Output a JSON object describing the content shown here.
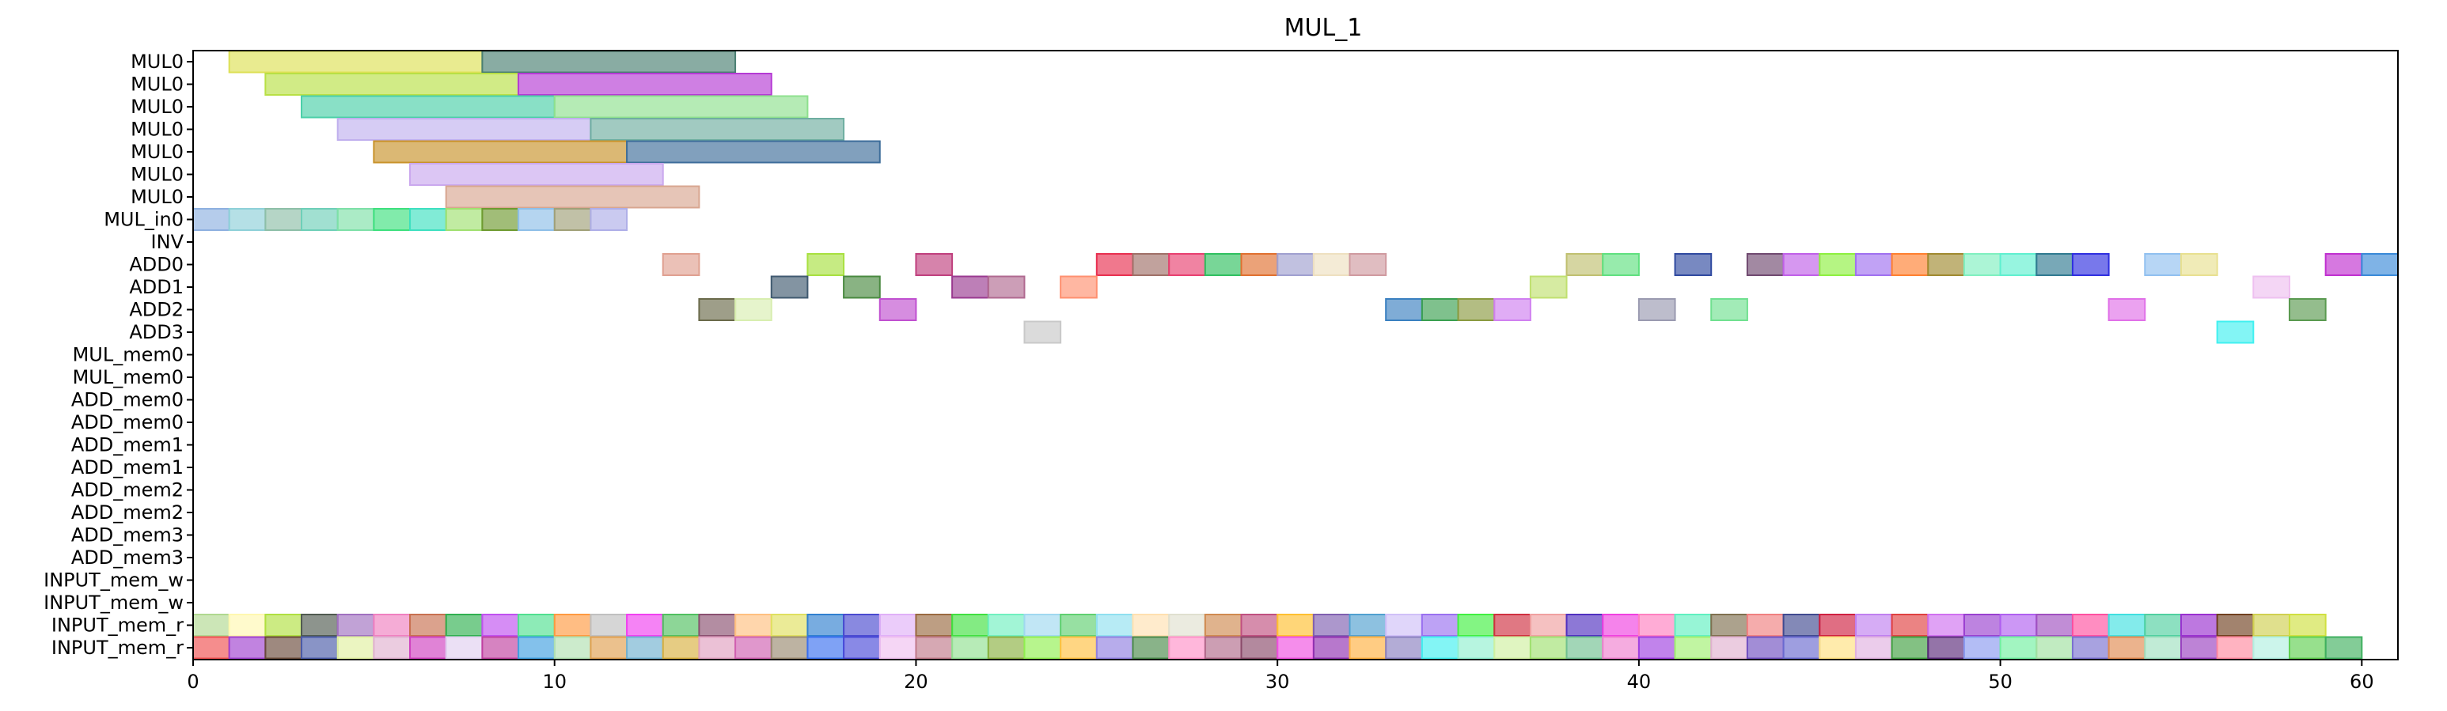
{
  "chart_data": {
    "type": "gantt",
    "title": "MUL_1",
    "xlabel": "",
    "ylabel": "",
    "xlim": [
      0,
      61
    ],
    "xticks": [
      0,
      10,
      20,
      30,
      40,
      50,
      60
    ],
    "xtick_labels": [
      "0",
      "10",
      "20",
      "30",
      "40",
      "50",
      "60"
    ],
    "rows": [
      "MUL0",
      "MUL0",
      "MUL0",
      "MUL0",
      "MUL0",
      "MUL0",
      "MUL0",
      "MUL_in0",
      "INV",
      "ADD0",
      "ADD1",
      "ADD2",
      "ADD3",
      "MUL_mem0",
      "MUL_mem0",
      "ADD_mem0",
      "ADD_mem0",
      "ADD_mem1",
      "ADD_mem1",
      "ADD_mem2",
      "ADD_mem2",
      "ADD_mem3",
      "ADD_mem3",
      "INPUT_mem_w",
      "INPUT_mem_w",
      "INPUT_mem_r",
      "INPUT_mem_r"
    ],
    "tasks": [
      {
        "row": 0,
        "start": 1,
        "end": 8,
        "color": "#dde055"
      },
      {
        "row": 0,
        "start": 8,
        "end": 15,
        "color": "#4a7f72"
      },
      {
        "row": 1,
        "start": 2,
        "end": 9,
        "color": "#b8e045"
      },
      {
        "row": 1,
        "start": 9,
        "end": 16,
        "color": "#b53ad4"
      },
      {
        "row": 2,
        "start": 3,
        "end": 10,
        "color": "#4acfa8"
      },
      {
        "row": 2,
        "start": 10,
        "end": 17,
        "color": "#8ee08e"
      },
      {
        "row": 3,
        "start": 4,
        "end": 11,
        "color": "#c0b0ee"
      },
      {
        "row": 3,
        "start": 11,
        "end": 18,
        "color": "#6eaea0"
      },
      {
        "row": 4,
        "start": 5,
        "end": 12,
        "color": "#c8922a"
      },
      {
        "row": 4,
        "start": 12,
        "end": 19,
        "color": "#3d6d9a"
      },
      {
        "row": 5,
        "start": 6,
        "end": 13,
        "color": "#caa8ee"
      },
      {
        "row": 6,
        "start": 7,
        "end": 14,
        "color": "#d8a690"
      },
      {
        "row": 7,
        "start": 0,
        "end": 1,
        "color": "#8eb0e0"
      },
      {
        "row": 7,
        "start": 1,
        "end": 2,
        "color": "#8ed0d8"
      },
      {
        "row": 7,
        "start": 2,
        "end": 3,
        "color": "#8ebfa8"
      },
      {
        "row": 7,
        "start": 3,
        "end": 4,
        "color": "#6ecfb8"
      },
      {
        "row": 7,
        "start": 4,
        "end": 5,
        "color": "#7ee0a8"
      },
      {
        "row": 7,
        "start": 5,
        "end": 6,
        "color": "#3ee07e"
      },
      {
        "row": 7,
        "start": 6,
        "end": 7,
        "color": "#3ee0c0"
      },
      {
        "row": 7,
        "start": 7,
        "end": 8,
        "color": "#a0e070"
      },
      {
        "row": 7,
        "start": 8,
        "end": 9,
        "color": "#6e9a30"
      },
      {
        "row": 7,
        "start": 9,
        "end": 10,
        "color": "#8ebfe8"
      },
      {
        "row": 7,
        "start": 10,
        "end": 11,
        "color": "#a0a078"
      },
      {
        "row": 7,
        "start": 11,
        "end": 12,
        "color": "#aeaee8"
      },
      {
        "row": 9,
        "start": 13,
        "end": 14,
        "color": "#e0a090"
      },
      {
        "row": 9,
        "start": 17,
        "end": 18,
        "color": "#a8e040"
      },
      {
        "row": 9,
        "start": 20,
        "end": 21,
        "color": "#c0407e"
      },
      {
        "row": 9,
        "start": 25,
        "end": 26,
        "color": "#e83050"
      },
      {
        "row": 9,
        "start": 26,
        "end": 27,
        "color": "#a07068"
      },
      {
        "row": 9,
        "start": 27,
        "end": 28,
        "color": "#e84070"
      },
      {
        "row": 9,
        "start": 28,
        "end": 29,
        "color": "#30c060"
      },
      {
        "row": 9,
        "start": 29,
        "end": 30,
        "color": "#e07030"
      },
      {
        "row": 9,
        "start": 30,
        "end": 31,
        "color": "#a0a0d0"
      },
      {
        "row": 9,
        "start": 31,
        "end": 32,
        "color": "#eee0c0"
      },
      {
        "row": 9,
        "start": 32,
        "end": 33,
        "color": "#d09aa0"
      },
      {
        "row": 9,
        "start": 38,
        "end": 39,
        "color": "#c0c070"
      },
      {
        "row": 9,
        "start": 39,
        "end": 40,
        "color": "#60e080"
      },
      {
        "row": 9,
        "start": 41,
        "end": 42,
        "color": "#304aa0"
      },
      {
        "row": 9,
        "start": 43,
        "end": 44,
        "color": "#704a70"
      },
      {
        "row": 9,
        "start": 44,
        "end": 45,
        "color": "#c060e8"
      },
      {
        "row": 9,
        "start": 45,
        "end": 46,
        "color": "#8ef040"
      },
      {
        "row": 9,
        "start": 46,
        "end": 47,
        "color": "#a070f0"
      },
      {
        "row": 9,
        "start": 47,
        "end": 48,
        "color": "#ff8030"
      },
      {
        "row": 9,
        "start": 48,
        "end": 49,
        "color": "#a08a30"
      },
      {
        "row": 9,
        "start": 49,
        "end": 50,
        "color": "#80f0c0"
      },
      {
        "row": 9,
        "start": 50,
        "end": 51,
        "color": "#60f0d0"
      },
      {
        "row": 9,
        "start": 51,
        "end": 52,
        "color": "#307a90"
      },
      {
        "row": 9,
        "start": 52,
        "end": 53,
        "color": "#3030e0"
      },
      {
        "row": 9,
        "start": 54,
        "end": 55,
        "color": "#90c0f0"
      },
      {
        "row": 9,
        "start": 55,
        "end": 56,
        "color": "#e8e090"
      },
      {
        "row": 9,
        "start": 59,
        "end": 60,
        "color": "#c030d0"
      },
      {
        "row": 9,
        "start": 60,
        "end": 61,
        "color": "#3a8ad8"
      },
      {
        "row": 10,
        "start": 16,
        "end": 17,
        "color": "#405a70"
      },
      {
        "row": 10,
        "start": 18,
        "end": 19,
        "color": "#4a8a40"
      },
      {
        "row": 10,
        "start": 21,
        "end": 22,
        "color": "#9a3a90"
      },
      {
        "row": 10,
        "start": 22,
        "end": 23,
        "color": "#b06a90"
      },
      {
        "row": 10,
        "start": 24,
        "end": 25,
        "color": "#ff9070"
      },
      {
        "row": 10,
        "start": 37,
        "end": 38,
        "color": "#c0e070"
      },
      {
        "row": 10,
        "start": 57,
        "end": 58,
        "color": "#eec0f0"
      },
      {
        "row": 11,
        "start": 14,
        "end": 15,
        "color": "#6a6a4a"
      },
      {
        "row": 11,
        "start": 15,
        "end": 16,
        "color": "#d8eeb0"
      },
      {
        "row": 11,
        "start": 19,
        "end": 20,
        "color": "#c050d0"
      },
      {
        "row": 11,
        "start": 33,
        "end": 34,
        "color": "#3a80c0"
      },
      {
        "row": 11,
        "start": 34,
        "end": 35,
        "color": "#3aa050"
      },
      {
        "row": 11,
        "start": 35,
        "end": 36,
        "color": "#8a9a40"
      },
      {
        "row": 11,
        "start": 36,
        "end": 37,
        "color": "#d080f0"
      },
      {
        "row": 11,
        "start": 40,
        "end": 41,
        "color": "#9a9ab0"
      },
      {
        "row": 11,
        "start": 42,
        "end": 43,
        "color": "#70e090"
      },
      {
        "row": 11,
        "start": 53,
        "end": 54,
        "color": "#e070e8"
      },
      {
        "row": 11,
        "start": 58,
        "end": 59,
        "color": "#5a9a50"
      },
      {
        "row": 12,
        "start": 23,
        "end": 24,
        "color": "#c8c8c8"
      },
      {
        "row": 12,
        "start": 56,
        "end": 57,
        "color": "#40f0f0"
      }
    ],
    "row25_colors": [
      "#b0d890",
      "#fff8b0",
      "#b0e040",
      "#505a50",
      "#a070c0",
      "#f080c0",
      "#c87050",
      "#30b050",
      "#c050f0",
      "#50e090",
      "#ff9a40",
      "#c0c0c0",
      "#f040f0",
      "#50c060",
      "#8a5070",
      "#ffc080",
      "#e0e060",
      "#3080d0",
      "#4a4ad0",
      "#e0b0f8",
      "#9a6a40",
      "#40e040",
      "#70f0c0",
      "#a0d8f0",
      "#60d070",
      "#90e0f0",
      "#ffe0b0",
      "#e0e0d0",
      "#d08a50",
      "#c05080",
      "#ffc030",
      "#8060b0",
      "#50a0d0",
      "#d0c0f8",
      "#9a70f0",
      "#40f040",
      "#d03040",
      "#f0a0a0",
      "#5030c0",
      "#f040e0",
      "#ff80c0",
      "#60f0c0",
      "#807050",
      "#f08080",
      "#404a90",
      "#d02040",
      "#c080f0",
      "#e04040",
      "#d070f0",
      "#9a40d0",
      "#b060f0",
      "#a050c0",
      "#ff50a0",
      "#40e0e0",
      "#50d0a0",
      "#9a30d0",
      "#704020",
      "#d0d050",
      "#d0e040"
    ],
    "row26_colors": [
      "#f05050",
      "#a040d0",
      "#6a4a3a",
      "#4a5aa8",
      "#e0f0a0",
      "#e0b0d0",
      "#d040c0",
      "#e0d0f0",
      "#c040a0",
      "#40a0e0",
      "#b0e0b0",
      "#e0a050",
      "#70b0d0",
      "#d8b040",
      "#e0a0c0",
      "#d060b0",
      "#9a8a70",
      "#3a70f0",
      "#4a4ad8",
      "#f0c0f0",
      "#c07a8a",
      "#90e090",
      "#8ab040",
      "#90f050",
      "#ffc040",
      "#9080e0",
      "#4a8a4a",
      "#ff90c8",
      "#b06a8a",
      "#8a4a6a",
      "#f050e0",
      "#9030b0",
      "#ffb040",
      "#8a80c0",
      "#40f0f0",
      "#90f0d0",
      "#d0f0a0",
      "#a0e070",
      "#70c090",
      "#f080d0",
      "#a040e0",
      "#a0f070",
      "#e0b0d0",
      "#7050c0",
      "#6a6ad0",
      "#ffe080",
      "#e0b0e0",
      "#40a040",
      "#5a2a7a",
      "#8a9af0",
      "#70f0a0",
      "#a0e0a0",
      "#7a70d0",
      "#e08a50",
      "#a0e0c0",
      "#9a40c0",
      "#ff8aa0",
      "#b0f0e0",
      "#60d050",
      "#40b060"
    ]
  }
}
